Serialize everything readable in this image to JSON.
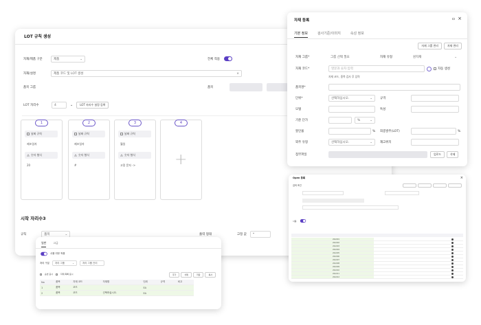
{
  "main": {
    "title": "LOT 규칙 생성",
    "type_label": "자재/제품 구분",
    "type_value": "제품",
    "active_label": "전체 적용",
    "desc_label": "자재/설명",
    "desc_value": "제품 코드 및 LOT 생성",
    "group_label": "품목 그룹",
    "item_label": "품목",
    "lot_length_label": "LOT 자리수",
    "lot_length_value": "4",
    "lot_rule_button": "LOT 자리수 설정 등록",
    "cards": [
      {
        "num": "1",
        "chip1": "날짜 규칙",
        "text1": "제조일자",
        "chip2": "숫자 형식",
        "text2": "20"
      },
      {
        "num": "2",
        "chip1": "날짜 규칙",
        "text1": "제조일자",
        "chip2": "숫자 형식",
        "text2": "#"
      },
      {
        "num": "3",
        "chip1": "날짜 규칙",
        "text1": "월일",
        "chip2": "숫자 형식",
        "text2": "고정 문자 ->"
      },
      {
        "num": "4"
      }
    ],
    "start_section": "시작 자리수3",
    "rule_label": "규칙",
    "rule_value": "품목",
    "digit_label": "출력 형태",
    "fixed_label": "고정 값",
    "fixed_value": "*"
  },
  "register": {
    "title": "자재 등록",
    "tabs": [
      "기본 정보",
      "검사기준/이미지",
      "속성 정보"
    ],
    "btn_group": "자재 그룹 관리",
    "btn_code": "자재 관리",
    "group_label": "자재 그룹*",
    "group_value": "그룹 선택 필요",
    "type_label": "자재 유형",
    "type_value": "원자재",
    "code_label": "자재 코드*",
    "code_placeholder": "영문과 숫자 입력",
    "auto_label": "자동 생성",
    "hint": "자재 코드, 중복 검사 후 입력",
    "name_label": "품목명*",
    "unit_label": "단위*",
    "unit_value": "선택하십시오.",
    "spec_label": "규격",
    "model_label": "모델",
    "color_label": "특성",
    "base_label": "기준 단가",
    "pct_label": "%",
    "rate_label": "할인율",
    "lot_label": "최종발주(LOT)",
    "supplier_label": "외주 유형",
    "supplier_value": "선택하십시오.",
    "warehouse_label": "재고위치",
    "attach_label": "첨부파일",
    "btn_add": "업로드",
    "btn_del": "삭제"
  },
  "list_window": {
    "title": "Open 등록",
    "section": "검색 조건",
    "toggle_label": "사용",
    "rows": [
      "20A001",
      "20A002",
      "20A003",
      "20A004",
      "20A005",
      "20A006",
      "20A007",
      "20A008",
      "20A009",
      "20A010",
      "20A011",
      "20A012"
    ]
  },
  "popup": {
    "tabs": [
      "일반",
      "고급"
    ],
    "toggle_label": "사용 여부 적용",
    "filter_label": "처리 구분",
    "filter_value": "처리 그룹",
    "filter2": "처리 그룹 관리",
    "options": [
      "순번 표시",
      "자재 목록 표시"
    ],
    "btn_add": "추가",
    "btn_del": "삭제",
    "btn_save": "저장",
    "btn_copy": "복사",
    "headers": [
      "No",
      "품목",
      "자재 코드",
      "자재명",
      "단위",
      "규격",
      "비고"
    ],
    "rows": [
      {
        "no": "1",
        "item": "품목",
        "code": "코드",
        "name": "",
        "unit": "EA"
      },
      {
        "no": "2",
        "item": "품목",
        "code": "코드",
        "name": "선택하십시오.",
        "unit": "EA"
      }
    ]
  }
}
